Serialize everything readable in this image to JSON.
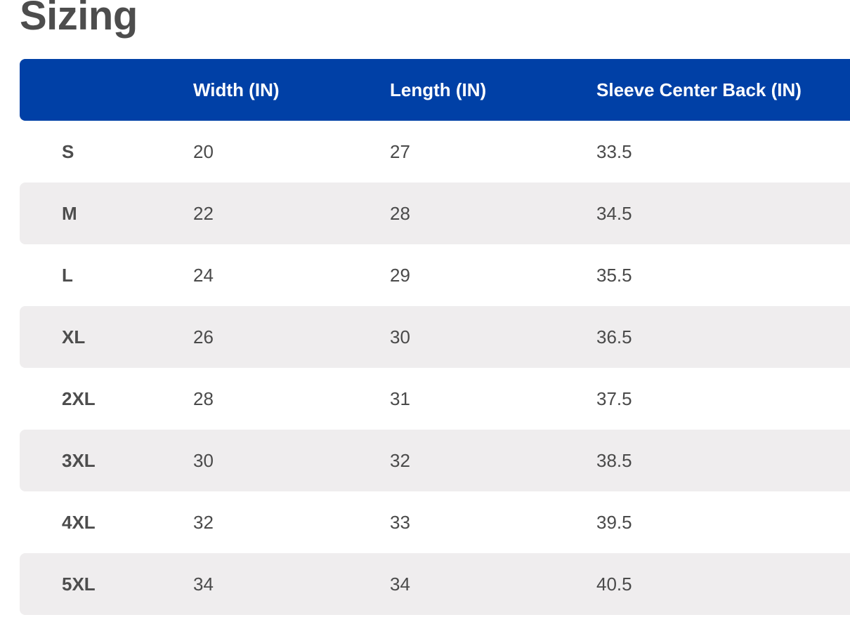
{
  "title": "Sizing",
  "header_color": "#0040a6",
  "stripe_color": "#efedee",
  "table": {
    "columns": [
      "",
      "Width (IN)",
      "Length (IN)",
      "Sleeve Center Back (IN)"
    ],
    "rows": [
      [
        "S",
        "20",
        "27",
        "33.5"
      ],
      [
        "M",
        "22",
        "28",
        "34.5"
      ],
      [
        "L",
        "24",
        "29",
        "35.5"
      ],
      [
        "XL",
        "26",
        "30",
        "36.5"
      ],
      [
        "2XL",
        "28",
        "31",
        "37.5"
      ],
      [
        "3XL",
        "30",
        "32",
        "38.5"
      ],
      [
        "4XL",
        "32",
        "33",
        "39.5"
      ],
      [
        "5XL",
        "34",
        "34",
        "40.5"
      ]
    ]
  }
}
